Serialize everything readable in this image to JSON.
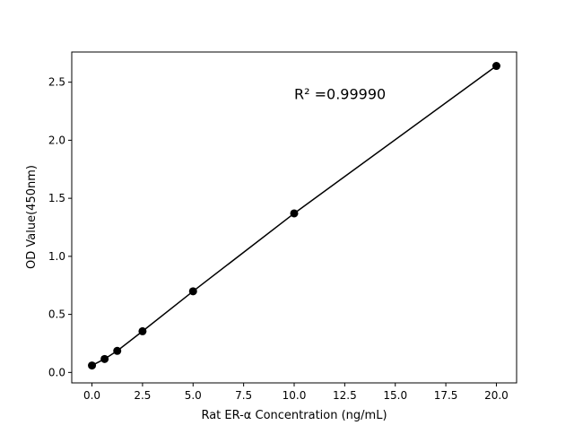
{
  "chart_data": {
    "type": "line",
    "title": "",
    "xlabel": "Rat ER-α Concentration (ng/mL)",
    "ylabel": "OD Value(450nm)",
    "xlim": [
      -1,
      21
    ],
    "ylim": [
      -0.09,
      2.76
    ],
    "xticks": [
      0.0,
      2.5,
      5.0,
      7.5,
      10.0,
      12.5,
      15.0,
      17.5,
      20.0
    ],
    "xtick_labels": [
      "0.0",
      "2.5",
      "5.0",
      "7.5",
      "10.0",
      "12.5",
      "15.0",
      "17.5",
      "20.0"
    ],
    "yticks": [
      0.0,
      0.5,
      1.0,
      1.5,
      2.0,
      2.5
    ],
    "ytick_labels": [
      "0.0",
      "0.5",
      "1.0",
      "1.5",
      "2.0",
      "2.5"
    ],
    "grid": false,
    "series": [
      {
        "x": [
          0,
          0.625,
          1.25,
          2.5,
          5,
          10,
          20
        ],
        "y": [
          0.06,
          0.116,
          0.186,
          0.355,
          0.699,
          1.37,
          2.64
        ],
        "color": "#000000",
        "marker": "circle"
      }
    ],
    "annotations": [
      {
        "text": "R² =0.99990",
        "x": 10,
        "y": 2.4
      }
    ]
  }
}
